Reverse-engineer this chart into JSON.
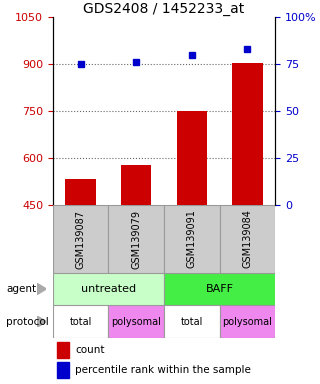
{
  "title": "GDS2408 / 1452233_at",
  "samples": [
    "GSM139087",
    "GSM139079",
    "GSM139091",
    "GSM139084"
  ],
  "bar_values": [
    535,
    580,
    750,
    905
  ],
  "percentile_values": [
    75,
    76,
    80,
    83
  ],
  "ylim_left": [
    450,
    1050
  ],
  "ylim_right": [
    0,
    100
  ],
  "yticks_left": [
    450,
    600,
    750,
    900,
    1050
  ],
  "yticks_right": [
    0,
    25,
    50,
    75,
    100
  ],
  "bar_color": "#cc0000",
  "marker_color": "#0000cc",
  "marker_size": 5,
  "bar_width": 0.55,
  "dotted_line_color": "#666666",
  "agent_color_untreated": "#c8ffc8",
  "agent_color_baff": "#44ee44",
  "protocol_color_total": "#ffffff",
  "protocol_color_polysomal": "#ee88ee",
  "sample_bg_color": "#cccccc",
  "legend_count_color": "#cc0000",
  "legend_pct_color": "#0000cc",
  "left_axis_color": "#cc0000",
  "right_axis_color": "#0000cc",
  "background_color": "#ffffff"
}
